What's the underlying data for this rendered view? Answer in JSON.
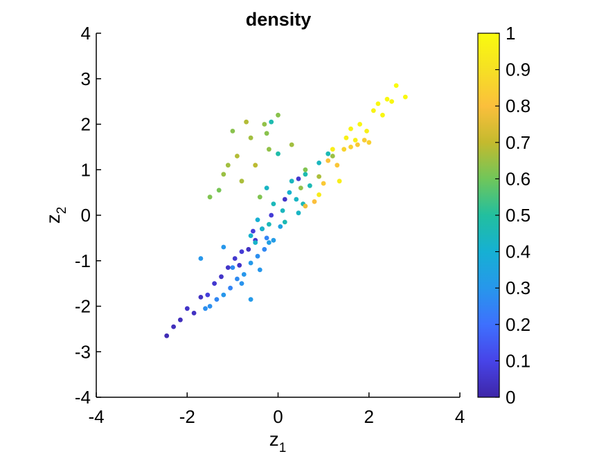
{
  "chart_data": {
    "type": "scatter",
    "title": "density",
    "xlabel": {
      "base": "z",
      "subscript": "1"
    },
    "ylabel": {
      "base": "z",
      "subscript": "2"
    },
    "xlim": [
      -4,
      4
    ],
    "ylim": [
      -4,
      4
    ],
    "xticks": [
      -4,
      -2,
      0,
      2,
      4
    ],
    "yticks": [
      -4,
      -3,
      -2,
      -1,
      0,
      1,
      2,
      3,
      4
    ],
    "xtick_labels": [
      "-4",
      "-2",
      "0",
      "2",
      "4"
    ],
    "ytick_labels": [
      "-4",
      "-3",
      "-2",
      "-1",
      "0",
      "1",
      "2",
      "3",
      "4"
    ],
    "grid": false,
    "box": "off",
    "colormap": "parula",
    "colorbar": {
      "clim": [
        0,
        1
      ],
      "ticks": [
        0,
        0.1,
        0.2,
        0.3,
        0.4,
        0.5,
        0.6,
        0.7,
        0.8,
        0.9,
        1
      ],
      "tick_labels": [
        "0",
        "0.1",
        "0.2",
        "0.3",
        "0.4",
        "0.5",
        "0.6",
        "0.7",
        "0.8",
        "0.9",
        "1"
      ],
      "placement": "right"
    },
    "colormap_stops": [
      "#3e26a8",
      "#4744e8",
      "#3e70fe",
      "#2797eb",
      "#16b0d3",
      "#22bf9f",
      "#70c65a",
      "#c4ba2e",
      "#fbbf3c",
      "#f6e024",
      "#f9fb0e"
    ],
    "clusters": [
      {
        "name": "",
        "points": [
          [
            -2.3,
            -2.45,
            0.03
          ],
          [
            -2.0,
            -2.05,
            0.05
          ],
          [
            -1.7,
            -1.8,
            0.04
          ],
          [
            -1.4,
            -1.5,
            0.06
          ],
          [
            -1.1,
            -1.15,
            0.05
          ],
          [
            -0.8,
            -0.8,
            0.07
          ],
          [
            -0.5,
            -0.55,
            0.06
          ],
          [
            -2.45,
            -2.65,
            0.02
          ],
          [
            -1.55,
            -1.75,
            0.08
          ],
          [
            -1.25,
            -1.35,
            0.05
          ],
          [
            -0.95,
            -0.95,
            0.06
          ],
          [
            -0.65,
            -0.75,
            0.04
          ],
          [
            -0.35,
            -0.3,
            0.06
          ],
          [
            -0.15,
            0.0,
            0.07
          ],
          [
            0.15,
            0.35,
            0.05
          ],
          [
            0.45,
            0.8,
            0.06
          ],
          [
            -0.55,
            -0.35,
            0.08
          ],
          [
            -1.85,
            -2.15,
            0.04
          ],
          [
            -2.15,
            -2.3,
            0.03
          ],
          [
            -0.85,
            -1.1,
            0.05
          ]
        ]
      },
      {
        "name": "",
        "points": [
          [
            -1.5,
            -2.0,
            0.28
          ],
          [
            -1.2,
            -1.75,
            0.3
          ],
          [
            -0.9,
            -1.4,
            0.27
          ],
          [
            -0.6,
            -1.05,
            0.31
          ],
          [
            -0.3,
            -0.75,
            0.26
          ],
          [
            -0.1,
            -0.55,
            0.32
          ],
          [
            -1.05,
            -1.6,
            0.25
          ],
          [
            -0.75,
            -1.3,
            0.3
          ],
          [
            -0.45,
            -0.9,
            0.28
          ],
          [
            -1.35,
            -1.85,
            0.26
          ],
          [
            -0.2,
            -0.6,
            0.33
          ],
          [
            -0.8,
            -1.5,
            0.29
          ],
          [
            -1.7,
            -0.95,
            0.3
          ],
          [
            -0.6,
            -1.85,
            0.31
          ],
          [
            -1.0,
            -1.15,
            0.27
          ],
          [
            -0.4,
            -1.2,
            0.3
          ],
          [
            -1.6,
            -2.05,
            0.28
          ],
          [
            0.05,
            -0.25,
            0.34
          ],
          [
            -0.25,
            -0.5,
            0.25
          ],
          [
            -1.2,
            -0.7,
            0.3
          ]
        ]
      },
      {
        "name": "",
        "points": [
          [
            -0.5,
            -0.6,
            0.42
          ],
          [
            -0.2,
            -0.2,
            0.45
          ],
          [
            0.1,
            0.1,
            0.44
          ],
          [
            0.4,
            0.35,
            0.43
          ],
          [
            0.7,
            0.65,
            0.46
          ],
          [
            -0.1,
            0.25,
            0.45
          ],
          [
            0.25,
            0.5,
            0.41
          ],
          [
            0.6,
            0.9,
            0.47
          ],
          [
            0.9,
            1.15,
            0.44
          ],
          [
            -0.35,
            -0.3,
            0.42
          ],
          [
            0.15,
            -0.15,
            0.46
          ],
          [
            0.45,
            0.05,
            0.43
          ],
          [
            -0.6,
            -0.45,
            0.41
          ],
          [
            0.0,
            1.35,
            0.48
          ],
          [
            -0.15,
            2.05,
            0.47
          ],
          [
            0.3,
            0.75,
            0.44
          ],
          [
            1.1,
            1.35,
            0.46
          ],
          [
            -0.25,
            0.6,
            0.43
          ],
          [
            0.55,
            0.25,
            0.45
          ],
          [
            -0.45,
            -0.1,
            0.4
          ]
        ]
      },
      {
        "name": "",
        "points": [
          [
            -1.5,
            0.4,
            0.62
          ],
          [
            -1.2,
            0.9,
            0.65
          ],
          [
            -0.9,
            1.3,
            0.68
          ],
          [
            -0.6,
            1.7,
            0.66
          ],
          [
            -0.3,
            2.0,
            0.64
          ],
          [
            0.0,
            2.2,
            0.63
          ],
          [
            -1.3,
            0.55,
            0.61
          ],
          [
            -0.8,
            0.75,
            0.67
          ],
          [
            -0.5,
            1.1,
            0.69
          ],
          [
            -0.2,
            1.45,
            0.64
          ],
          [
            0.3,
            1.55,
            0.66
          ],
          [
            0.6,
            1.0,
            0.62
          ],
          [
            0.9,
            0.85,
            0.67
          ],
          [
            1.2,
            1.3,
            0.65
          ],
          [
            -1.0,
            1.85,
            0.63
          ],
          [
            -0.7,
            2.05,
            0.68
          ],
          [
            -0.4,
            0.4,
            0.62
          ],
          [
            0.5,
            0.6,
            0.64
          ],
          [
            -1.1,
            1.1,
            0.66
          ],
          [
            -0.25,
            1.8,
            0.63
          ]
        ]
      },
      {
        "name": "",
        "points": [
          [
            0.8,
            0.3,
            0.8
          ],
          [
            1.0,
            0.7,
            0.83
          ],
          [
            1.3,
            1.1,
            0.82
          ],
          [
            1.6,
            1.5,
            0.85
          ],
          [
            1.9,
            1.65,
            0.84
          ],
          [
            0.6,
            0.2,
            0.78
          ],
          [
            1.1,
            1.2,
            0.81
          ],
          [
            1.45,
            1.45,
            0.86
          ],
          [
            1.75,
            1.55,
            0.83
          ],
          [
            2.0,
            1.6,
            0.85
          ]
        ]
      },
      {
        "name": "",
        "points": [
          [
            1.5,
            1.7,
            0.96
          ],
          [
            1.8,
            2.0,
            0.98
          ],
          [
            2.1,
            2.3,
            0.97
          ],
          [
            2.4,
            2.55,
            0.99
          ],
          [
            2.6,
            2.85,
            1.0
          ],
          [
            2.8,
            2.6,
            0.99
          ],
          [
            2.3,
            2.2,
            0.98
          ],
          [
            1.95,
            1.85,
            0.96
          ],
          [
            1.2,
            1.45,
            0.95
          ],
          [
            1.6,
            1.9,
            0.97
          ],
          [
            2.5,
            2.5,
            0.98
          ],
          [
            1.35,
            0.75,
            0.95
          ],
          [
            0.9,
            0.45,
            0.94
          ],
          [
            2.2,
            2.45,
            0.99
          ],
          [
            1.7,
            1.65,
            0.96
          ]
        ]
      }
    ]
  }
}
